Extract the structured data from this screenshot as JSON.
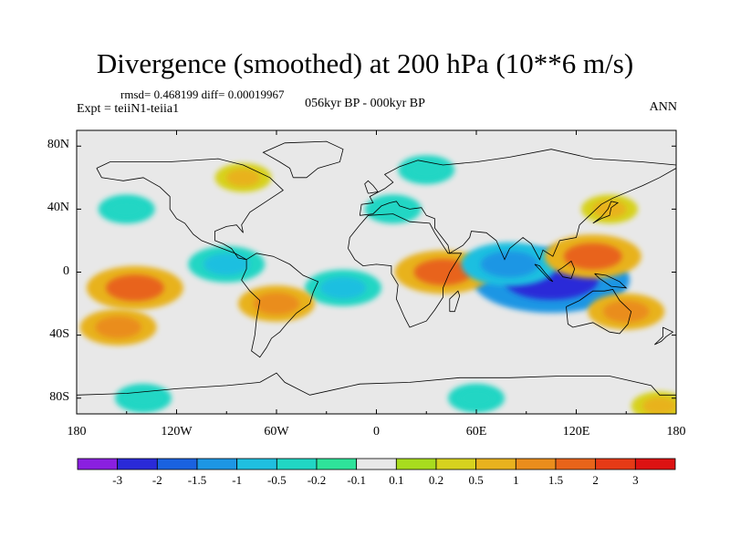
{
  "title": "Divergence (smoothed) at 200 hPa (10**6 m/s)",
  "stats": "rmsd= 0.468199 diff= 0.00019967",
  "experiment": "Expt = teiiN1-teiia1",
  "period": "056kyr BP - 000kyr BP",
  "season": "ANN",
  "lat_labels": [
    "80N",
    "40N",
    "0",
    "40S",
    "80S"
  ],
  "lon_labels": [
    "180",
    "120W",
    "60W",
    "0",
    "60E",
    "120E",
    "180"
  ],
  "colorbar": {
    "labels": [
      "-3",
      "-2",
      "-1.5",
      "-1",
      "-0.5",
      "-0.2",
      "-0.1",
      "0.1",
      "0.2",
      "0.5",
      "1",
      "1.5",
      "2",
      "3"
    ],
    "colors": [
      "#8a1fe0",
      "#2a2ad8",
      "#1a62e0",
      "#1d96e4",
      "#1fbfe0",
      "#21d6c4",
      "#2ee39a",
      "#e8e8e8",
      "#a8dc1e",
      "#d7d21e",
      "#e8b21e",
      "#ea8d1c",
      "#e8641a",
      "#e63a16",
      "#dd1212"
    ]
  },
  "chart_data": {
    "type": "heatmap",
    "title": "Divergence (smoothed) at 200 hPa (10**6 m/s)",
    "x_ticks": [
      "180",
      "120W",
      "60W",
      "0",
      "60E",
      "120E",
      "180"
    ],
    "y_ticks": [
      "80N",
      "40N",
      "0",
      "40S",
      "80S"
    ],
    "xlim": [
      -180,
      180
    ],
    "ylim": [
      -90,
      90
    ],
    "levels": [
      -3,
      -2,
      -1.5,
      -1,
      -0.5,
      -0.2,
      -0.1,
      0.1,
      0.2,
      0.5,
      1,
      1.5,
      2,
      3
    ],
    "features": [
      {
        "lon": 105,
        "lat": -5,
        "value": -3
      },
      {
        "lon": 40,
        "lat": 0,
        "value": 1.5
      },
      {
        "lon": -145,
        "lat": -10,
        "value": 1.5
      },
      {
        "lon": -90,
        "lat": 5,
        "value": -1
      },
      {
        "lon": -20,
        "lat": -10,
        "value": -1
      },
      {
        "lon": 80,
        "lat": 5,
        "value": -1.5
      },
      {
        "lon": 130,
        "lat": 10,
        "value": 1.5
      },
      {
        "lon": 150,
        "lat": -25,
        "value": 1
      },
      {
        "lon": -155,
        "lat": -35,
        "value": 1
      },
      {
        "lon": -60,
        "lat": -20,
        "value": 1
      },
      {
        "lon": 10,
        "lat": 40,
        "value": -0.5
      },
      {
        "lon": 140,
        "lat": 40,
        "value": 0.5
      },
      {
        "lon": -150,
        "lat": 40,
        "value": -0.5
      },
      {
        "lon": -80,
        "lat": 60,
        "value": 0.5
      },
      {
        "lon": 30,
        "lat": 65,
        "value": -0.5
      },
      {
        "lon": -140,
        "lat": -80,
        "value": -0.5
      },
      {
        "lon": 60,
        "lat": -80,
        "value": -0.5
      },
      {
        "lon": 170,
        "lat": -85,
        "value": 0.5
      }
    ]
  }
}
